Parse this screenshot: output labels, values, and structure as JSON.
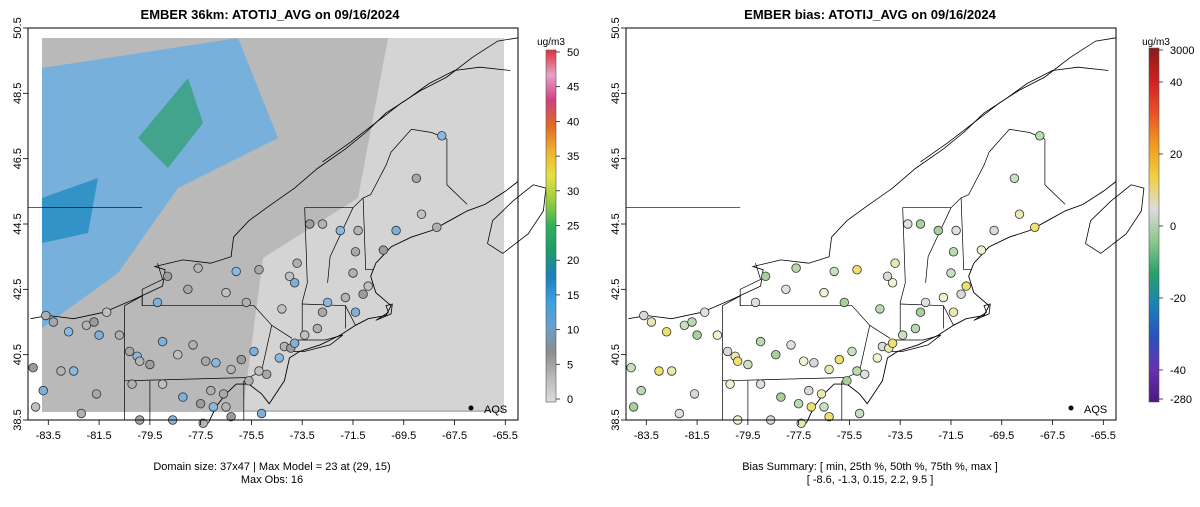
{
  "left_panel": {
    "title": "EMBER 36km: ATOTIJ_AVG on 09/16/2024",
    "x_ticks": [
      "-83.5",
      "-81.5",
      "-79.5",
      "-77.5",
      "-75.5",
      "-73.5",
      "-71.5",
      "-69.5",
      "-67.5",
      "-65.5"
    ],
    "y_ticks": [
      "38.5",
      "40.5",
      "42.5",
      "44.5",
      "46.5",
      "48.5",
      "50.5"
    ],
    "legend_label": "AQS",
    "footer_line1": "Domain size: 37x47 | Max Model = 23 at (29, 15)",
    "footer_line2": "Max Obs: 16",
    "colorbar": {
      "unit": "ug/m3",
      "ticks": [
        "0",
        "5",
        "10",
        "15",
        "20",
        "25",
        "30",
        "35",
        "40",
        "45",
        "50"
      ],
      "range": [
        0,
        50
      ],
      "colors": [
        "#dcdcdc",
        "#b8b8b8",
        "#8c8c8c",
        "#6a9fd0",
        "#3aa0e0",
        "#1a7fc0",
        "#1b9c6a",
        "#2fb05a",
        "#9acd3c",
        "#e8e040",
        "#f0b030",
        "#e06a20",
        "#d04080",
        "#e8a0c8",
        "#e0303a"
      ]
    }
  },
  "right_panel": {
    "title": "EMBER bias: ATOTIJ_AVG on 09/16/2024",
    "x_ticks": [
      "-83.5",
      "-81.5",
      "-79.5",
      "-77.5",
      "-75.5",
      "-73.5",
      "-71.5",
      "-69.5",
      "-67.5",
      "-65.5"
    ],
    "y_ticks": [
      "38.5",
      "40.5",
      "42.5",
      "44.5",
      "46.5",
      "48.5",
      "50.5"
    ],
    "legend_label": "AQS",
    "footer_line1": "Bias Summary: [ min, 25th %, 50th %, 75th %, max ]",
    "footer_line2": "[ -8.6,   -1.3,   0.15,   2.2,   9.5 ]",
    "colorbar": {
      "unit": "ug/m3",
      "ticks": [
        "3000",
        "40",
        "20",
        "0",
        "-20",
        "-40",
        "-280"
      ],
      "colors": [
        "#8a1a1a",
        "#d02020",
        "#e8502a",
        "#f09a20",
        "#f0d040",
        "#dcdcdc",
        "#8cc88c",
        "#2aa06a",
        "#1a80b8",
        "#2a50c0",
        "#6a30b0",
        "#4a1a80"
      ]
    }
  },
  "map": {
    "lon_range": [
      -84.3,
      -65.0
    ],
    "lat_range": [
      38.5,
      50.5
    ]
  }
}
